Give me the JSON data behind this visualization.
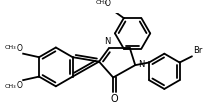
{
  "bg_color": "#ffffff",
  "lc": "#000000",
  "lw": 1.3,
  "figsize": [
    2.07,
    1.11
  ],
  "dpi": 100,
  "xlim": [
    0,
    207
  ],
  "ylim": [
    0,
    111
  ]
}
